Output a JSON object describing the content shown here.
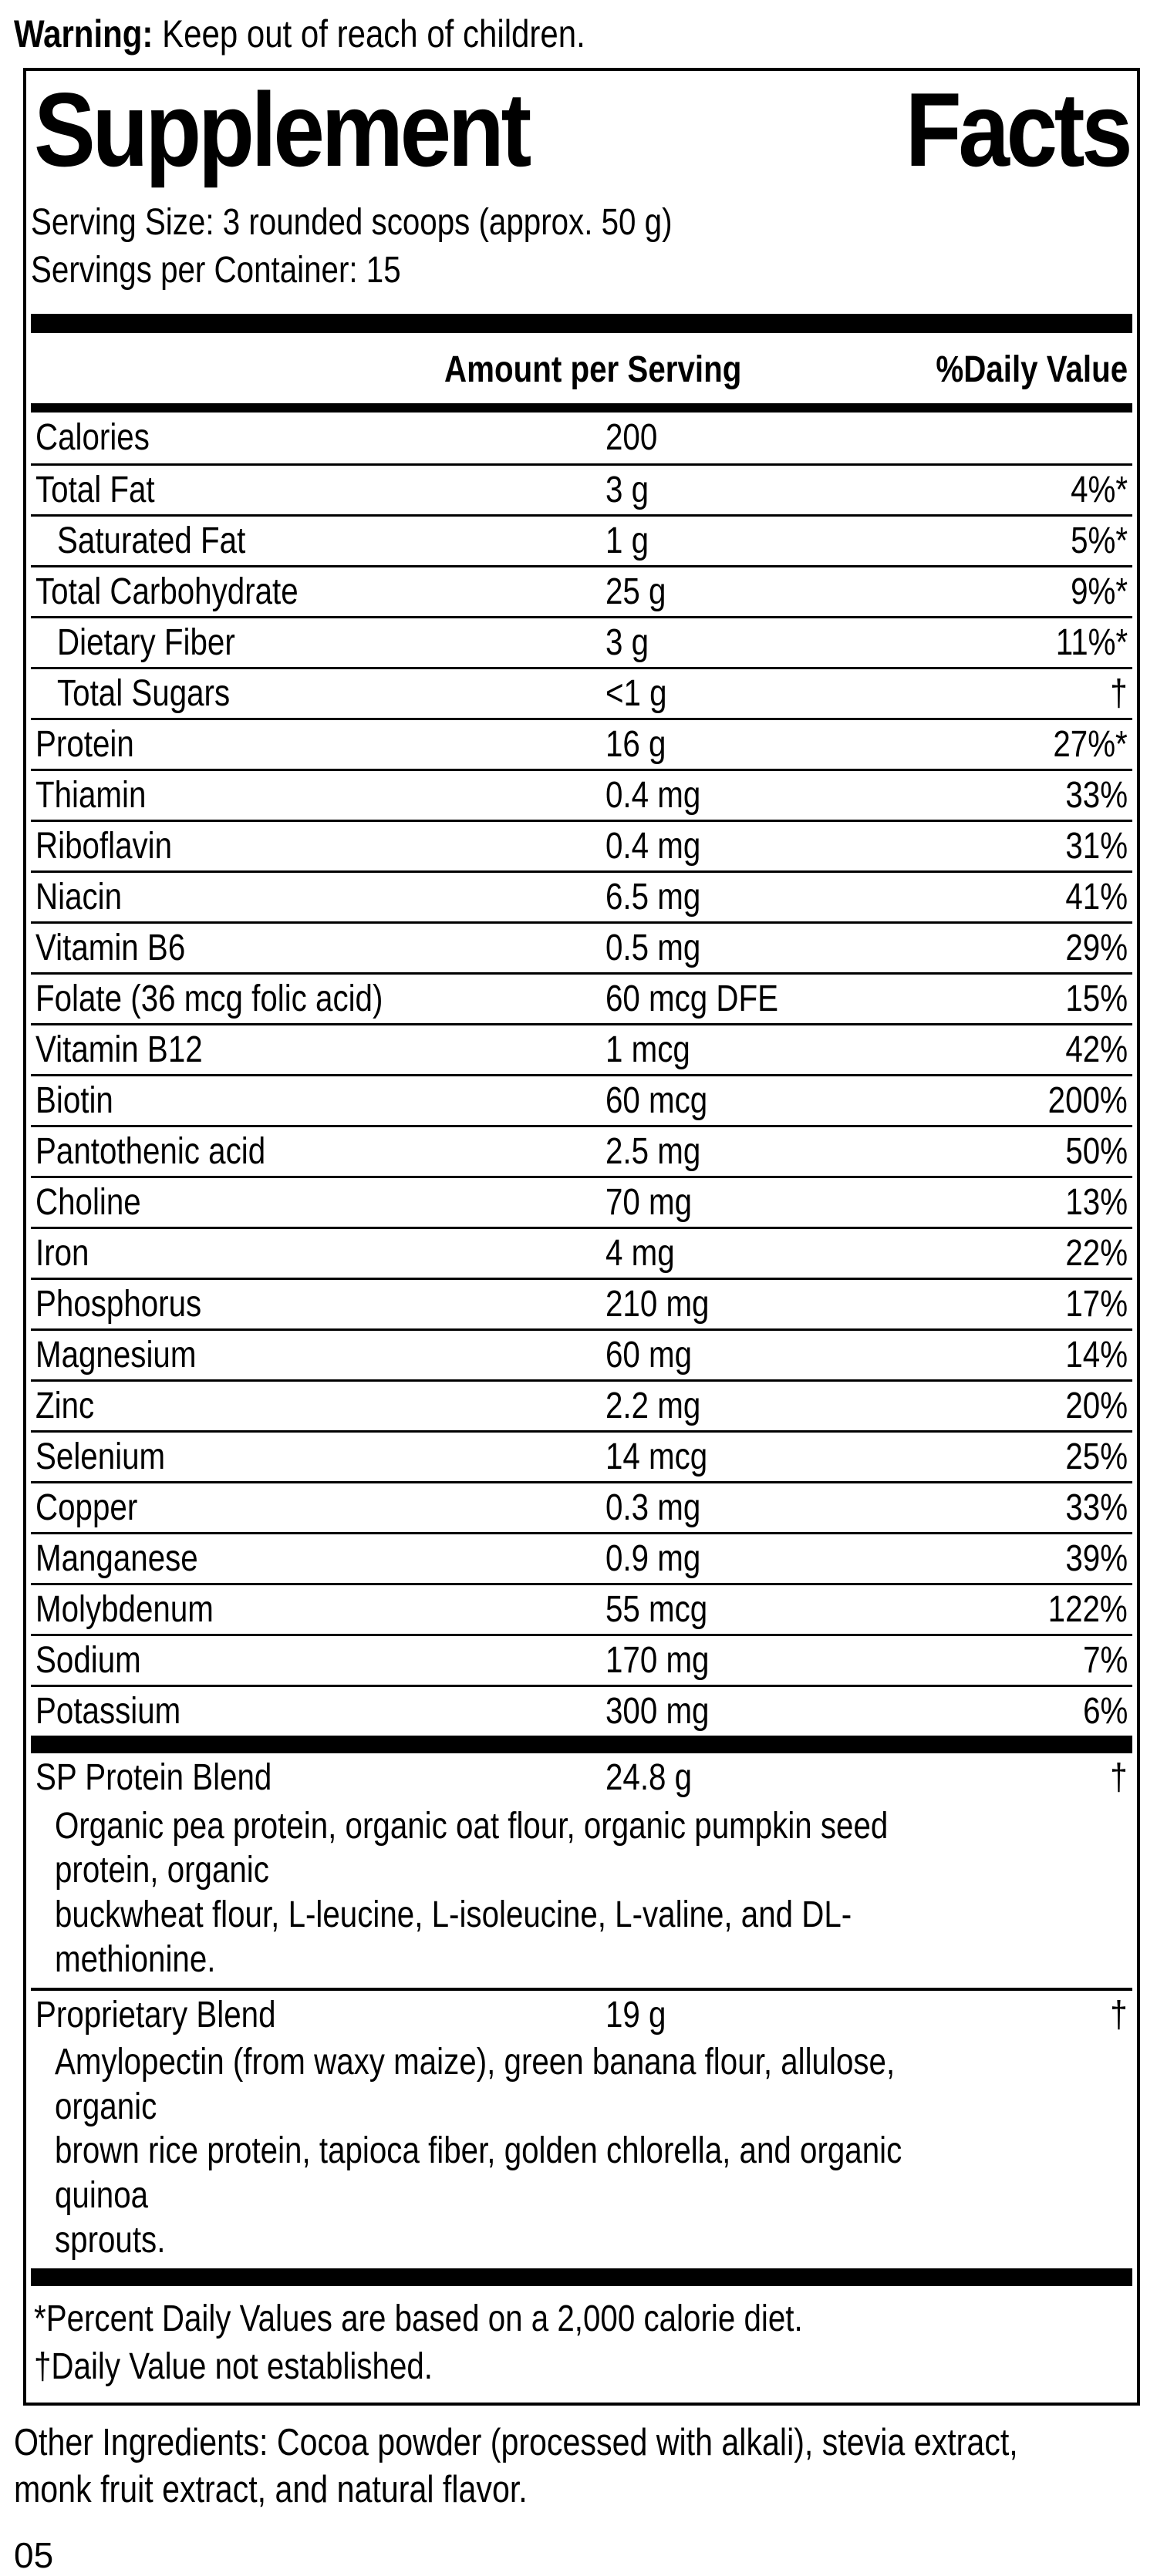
{
  "warning": {
    "bold": "Warning:",
    "text": " Keep out of reach of children."
  },
  "panel": {
    "title_word1": "Supplement",
    "title_word2": "Facts",
    "serving_size": "Serving Size: 3 rounded scoops (approx. 50 g)",
    "servings_per_container": "Servings per Container: 15",
    "columns": {
      "amount": "Amount per Serving",
      "daily_value": "%Daily Value"
    },
    "rows": [
      {
        "label": "Calories",
        "amount": "200",
        "dv": "",
        "indent": false
      },
      {
        "label": "Total Fat",
        "amount": "3 g",
        "dv": "4%*",
        "indent": false
      },
      {
        "label": "Saturated Fat",
        "amount": "1 g",
        "dv": "5%*",
        "indent": true
      },
      {
        "label": "Total Carbohydrate",
        "amount": "25 g",
        "dv": "9%*",
        "indent": false
      },
      {
        "label": "Dietary Fiber",
        "amount": "3 g",
        "dv": "11%*",
        "indent": true
      },
      {
        "label": "Total Sugars",
        "amount": "<1 g",
        "dv": "†",
        "indent": true
      },
      {
        "label": "Protein",
        "amount": "16 g",
        "dv": "27%*",
        "indent": false
      },
      {
        "label": "Thiamin",
        "amount": "0.4 mg",
        "dv": "33%",
        "indent": false
      },
      {
        "label": "Riboflavin",
        "amount": "0.4 mg",
        "dv": "31%",
        "indent": false
      },
      {
        "label": "Niacin",
        "amount": "6.5 mg",
        "dv": "41%",
        "indent": false
      },
      {
        "label": "Vitamin B6",
        "amount": "0.5 mg",
        "dv": "29%",
        "indent": false
      },
      {
        "label": "Folate (36 mcg folic acid)",
        "amount": "60 mcg DFE",
        "dv": "15%",
        "indent": false
      },
      {
        "label": "Vitamin B12",
        "amount": "1 mcg",
        "dv": "42%",
        "indent": false
      },
      {
        "label": "Biotin",
        "amount": "60 mcg",
        "dv": "200%",
        "indent": false
      },
      {
        "label": "Pantothenic acid",
        "amount": "2.5 mg",
        "dv": "50%",
        "indent": false
      },
      {
        "label": "Choline",
        "amount": "70 mg",
        "dv": "13%",
        "indent": false
      },
      {
        "label": "Iron",
        "amount": "4 mg",
        "dv": "22%",
        "indent": false
      },
      {
        "label": "Phosphorus",
        "amount": "210 mg",
        "dv": "17%",
        "indent": false
      },
      {
        "label": "Magnesium",
        "amount": "60 mg",
        "dv": "14%",
        "indent": false
      },
      {
        "label": "Zinc",
        "amount": "2.2 mg",
        "dv": "20%",
        "indent": false
      },
      {
        "label": "Selenium",
        "amount": "14 mcg",
        "dv": "25%",
        "indent": false
      },
      {
        "label": "Copper",
        "amount": "0.3 mg",
        "dv": "33%",
        "indent": false
      },
      {
        "label": "Manganese",
        "amount": "0.9 mg",
        "dv": "39%",
        "indent": false
      },
      {
        "label": "Molybdenum",
        "amount": "55 mcg",
        "dv": "122%",
        "indent": false
      },
      {
        "label": "Sodium",
        "amount": "170 mg",
        "dv": "7%",
        "indent": false
      },
      {
        "label": "Potassium",
        "amount": "300 mg",
        "dv": "6%",
        "indent": false
      }
    ],
    "blends": [
      {
        "label": "SP Protein Blend",
        "amount": "24.8 g",
        "dv": "†",
        "ingredients": [
          "Organic pea protein, organic oat flour, organic pumpkin seed protein, organic",
          "buckwheat flour, L-leucine, L-isoleucine, L-valine, and DL-methionine."
        ]
      },
      {
        "label": "Proprietary Blend",
        "amount": "19 g",
        "dv": "†",
        "ingredients": [
          "Amylopectin (from waxy maize), green banana flour, allulose, organic",
          "brown rice protein, tapioca fiber, golden chlorella, and organic quinoa",
          "sprouts."
        ]
      }
    ],
    "footnotes": [
      "*Percent Daily Values are based on a 2,000 calorie diet.",
      "†Daily Value not established."
    ]
  },
  "other_ingredients": [
    "Other Ingredients: Cocoa powder (processed with alkali), stevia extract,",
    "monk fruit extract, and natural flavor."
  ],
  "page_number": "05"
}
